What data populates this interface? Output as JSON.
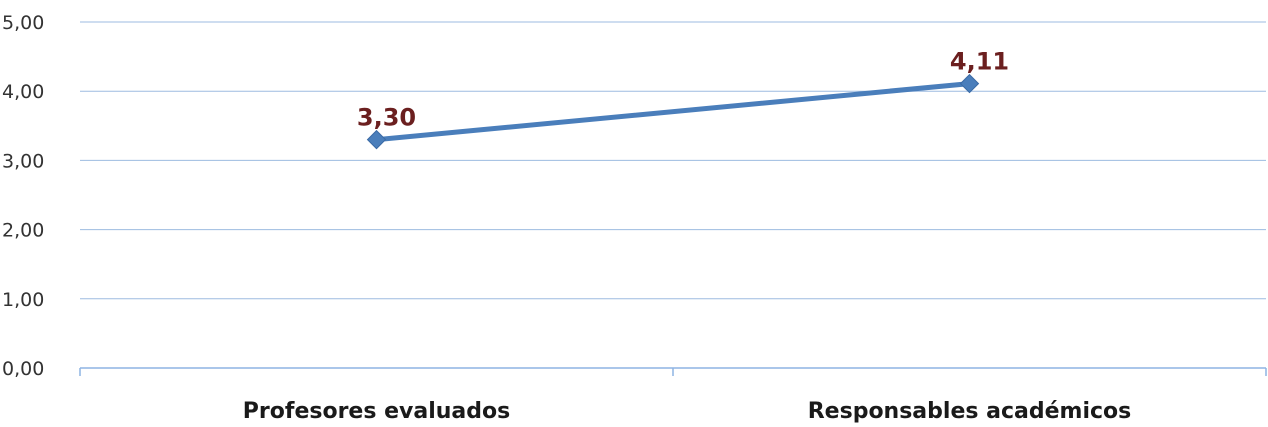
{
  "chart_data": {
    "type": "line",
    "title": "",
    "xlabel": "",
    "ylabel": "",
    "categories": [
      "Profesores evaluados",
      "Responsables académicos"
    ],
    "series": [
      {
        "values": [
          3.3,
          4.11
        ],
        "data_labels": [
          "3,30",
          "4,11"
        ]
      }
    ],
    "ylim": [
      0,
      5
    ],
    "yticks": [
      0,
      1,
      2,
      3,
      4,
      5
    ],
    "ytick_labels": [
      "0,00",
      "1,00",
      "2,00",
      "3,00",
      "4,00",
      "5,00"
    ],
    "grid": true,
    "legend": "none",
    "colors": {
      "line": "#4a7ebb",
      "marker": "#4a7ebb",
      "data_label": "#6b1f1f",
      "grid": "#9dbbe0",
      "axis": "#8eb4e3"
    }
  }
}
